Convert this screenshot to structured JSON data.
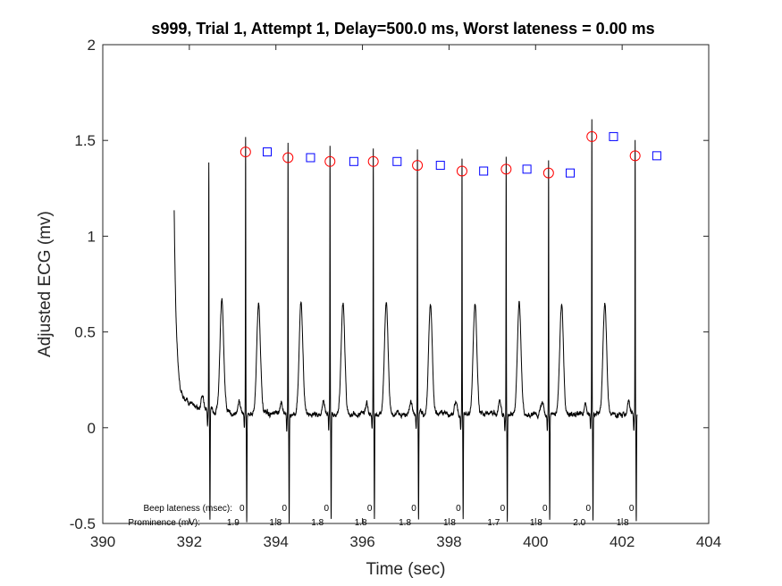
{
  "chart_data": {
    "type": "line",
    "title": "s999, Trial 1, Attempt 1, Delay=500.0 ms, Worst lateness = 0.00 ms",
    "xlabel": "Time (sec)",
    "ylabel": "Adjusted ECG (mv)",
    "xlim": [
      390,
      404
    ],
    "ylim": [
      -0.5,
      2
    ],
    "xticks": [
      390,
      392,
      394,
      396,
      398,
      400,
      402,
      404
    ],
    "xtick_labels": [
      "390",
      "392",
      "394",
      "396",
      "398",
      "400",
      "402",
      "404"
    ],
    "yticks": [
      -0.5,
      0,
      0.5,
      1,
      1.5,
      2
    ],
    "ytick_labels": [
      "-0.5",
      "0",
      "0.5",
      "1",
      "1.5",
      "2"
    ],
    "grid": false,
    "legend": "none",
    "colors": {
      "ecg": "#000000",
      "r_peak_marker": "#ff0000",
      "beep_marker": "#0000ff",
      "axes": "#262626"
    },
    "ecg_start": 391.65,
    "ecg_end": 402.35,
    "r_peaks": {
      "marker": "circle",
      "x": [
        393.3,
        394.28,
        395.25,
        396.25,
        397.27,
        398.3,
        399.32,
        400.3,
        401.3,
        402.3
      ],
      "y": [
        1.44,
        1.41,
        1.39,
        1.39,
        1.37,
        1.34,
        1.35,
        1.33,
        1.52,
        1.42
      ]
    },
    "early_peaks": {
      "x": [
        392.45
      ],
      "y": [
        1.3
      ]
    },
    "beeps": {
      "marker": "square",
      "x": [
        393.8,
        394.8,
        395.8,
        396.8,
        397.8,
        398.8,
        399.8,
        400.8,
        401.8,
        402.8
      ],
      "y": [
        1.44,
        1.41,
        1.39,
        1.39,
        1.37,
        1.34,
        1.35,
        1.33,
        1.52,
        1.42
      ]
    },
    "annotations": {
      "beep_lateness_label": "Beep lateness (msec):",
      "prominence_label": "Prominence (mV):",
      "beep_lateness_values": [
        "0",
        "0",
        "0",
        "0",
        "0",
        "0",
        "0",
        "0",
        "0",
        "0"
      ],
      "prominence_values": [
        "1.9",
        "1.8",
        "1.8",
        "1.8",
        "1.8",
        "1.8",
        "1.7",
        "1.8",
        "2.0",
        "1.8"
      ]
    }
  }
}
